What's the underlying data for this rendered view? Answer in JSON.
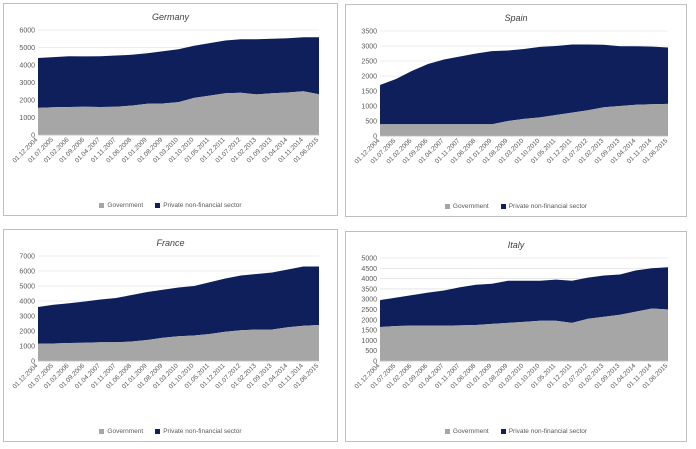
{
  "legend": {
    "government": "Government",
    "private": "Private non-financial sector"
  },
  "colors": {
    "government": "#a6a6a6",
    "private": "#0e1f5c",
    "axis": "#595959",
    "grid": "#d9d9d9"
  },
  "chart_data": [
    {
      "type": "area",
      "stacked": true,
      "title": "Germany",
      "ylim": [
        0,
        6000
      ],
      "yticks": [
        0,
        1000,
        2000,
        3000,
        4000,
        5000,
        6000
      ],
      "xtick_labels": [
        "01.12.2004",
        "01.07.2005",
        "01.02.2006",
        "01.09.2006",
        "01.04.2007",
        "01.11.2007",
        "01.06.2008",
        "01.01.2009",
        "01.08.2009",
        "01.03.2010",
        "01.10.2010",
        "01.05.2011",
        "01.12.2011",
        "01.07.2012",
        "01.02.2013",
        "01.09.2013",
        "01.04.2014",
        "01.11.2014",
        "01.06.2015"
      ],
      "series": [
        {
          "name": "Government",
          "values": [
            1550,
            1580,
            1600,
            1610,
            1600,
            1620,
            1680,
            1790,
            1800,
            1880,
            2120,
            2250,
            2380,
            2420,
            2320,
            2380,
            2430,
            2500,
            2330
          ]
        },
        {
          "name": "Private non-financial sector",
          "values": [
            2850,
            2870,
            2900,
            2880,
            2900,
            2920,
            2900,
            2880,
            2980,
            3020,
            2980,
            3000,
            3020,
            3050,
            3150,
            3120,
            3100,
            3080,
            3250
          ]
        }
      ]
    },
    {
      "type": "area",
      "stacked": true,
      "title": "Spain",
      "ylim": [
        0,
        3500
      ],
      "yticks": [
        0,
        500,
        1000,
        1500,
        2000,
        2500,
        3000,
        3500
      ],
      "xtick_labels": [
        "01.12.2004",
        "01.07.2005",
        "01.02.2006",
        "01.09.2006",
        "01.04.2007",
        "01.11.2007",
        "01.06.2008",
        "01.01.2009",
        "01.08.2009",
        "01.03.2010",
        "01.10.2010",
        "01.05.2011",
        "01.12.2011",
        "01.07.2012",
        "01.02.2013",
        "01.09.2013",
        "01.04.2014",
        "01.11.2014",
        "01.06.2015"
      ],
      "series": [
        {
          "name": "Government",
          "values": [
            390,
            390,
            390,
            390,
            390,
            390,
            390,
            390,
            500,
            570,
            620,
            700,
            780,
            860,
            960,
            1000,
            1040,
            1060,
            1070
          ]
        },
        {
          "name": "Private non-financial sector",
          "values": [
            1310,
            1510,
            1780,
            2010,
            2160,
            2260,
            2360,
            2440,
            2350,
            2330,
            2350,
            2300,
            2270,
            2190,
            2080,
            1990,
            1950,
            1920,
            1880
          ]
        }
      ]
    },
    {
      "type": "area",
      "stacked": true,
      "title": "France",
      "ylim": [
        0,
        7000
      ],
      "yticks": [
        0,
        1000,
        2000,
        3000,
        4000,
        5000,
        6000,
        7000
      ],
      "xtick_labels": [
        "01.12.2004",
        "01.07.2005",
        "01.02.2006",
        "01.09.2006",
        "01.04.2007",
        "01.11.2007",
        "01.06.2008",
        "01.01.2009",
        "01.08.2009",
        "01.03.2010",
        "01.10.2010",
        "01.05.2011",
        "01.12.2011",
        "01.07.2012",
        "01.02.2013",
        "01.09.2013",
        "01.04.2014",
        "01.11.2014",
        "01.06.2015"
      ],
      "series": [
        {
          "name": "Government",
          "values": [
            1150,
            1170,
            1200,
            1220,
            1250,
            1250,
            1300,
            1400,
            1550,
            1650,
            1700,
            1800,
            1950,
            2050,
            2100,
            2100,
            2250,
            2350,
            2400
          ]
        },
        {
          "name": "Private non-financial sector",
          "values": [
            2450,
            2580,
            2650,
            2750,
            2850,
            2950,
            3100,
            3200,
            3200,
            3250,
            3300,
            3450,
            3550,
            3650,
            3700,
            3800,
            3850,
            3950,
            3900
          ]
        }
      ]
    },
    {
      "type": "area",
      "stacked": true,
      "title": "Italy",
      "ylim": [
        0,
        5000
      ],
      "yticks": [
        0,
        500,
        1000,
        1500,
        2000,
        2500,
        3000,
        3500,
        4000,
        4500,
        5000
      ],
      "xtick_labels": [
        "01.12.2004",
        "01.07.2005",
        "01.02.2006",
        "01.09.2006",
        "01.04.2007",
        "01.11.2007",
        "01.06.2008",
        "01.01.2009",
        "01.08.2009",
        "01.03.2010",
        "01.10.2010",
        "01.05.2011",
        "01.12.2011",
        "01.07.2012",
        "01.02.2013",
        "01.09.2013",
        "01.04.2014",
        "01.11.2014",
        "01.06.2015"
      ],
      "series": [
        {
          "name": "Government",
          "values": [
            1650,
            1700,
            1720,
            1720,
            1720,
            1730,
            1750,
            1800,
            1850,
            1900,
            1950,
            1950,
            1850,
            2050,
            2150,
            2250,
            2400,
            2550,
            2500
          ]
        },
        {
          "name": "Private non-financial sector",
          "values": [
            1300,
            1380,
            1480,
            1600,
            1700,
            1850,
            1950,
            1950,
            2050,
            2000,
            1950,
            2000,
            2050,
            2000,
            2000,
            1950,
            2000,
            1950,
            2050
          ]
        }
      ]
    }
  ]
}
